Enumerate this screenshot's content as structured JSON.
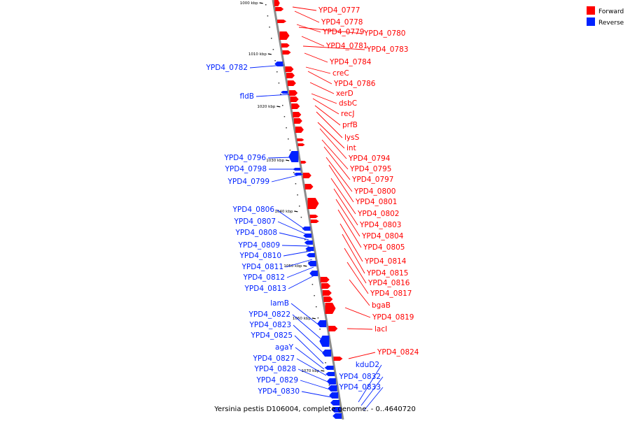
{
  "colors": {
    "forward": "#ff0000",
    "reverse": "#0022ff",
    "backbone": "#8c8c8c",
    "tick": "#000000"
  },
  "legend": {
    "forward": "Forward",
    "reverse": "Reverse"
  },
  "caption": "Yersinia pestis D106004, complete genome. - 0..4640720",
  "ticks": [
    "1000 kbp",
    "1010 kbp",
    "1020 kbp",
    "1030 kbp",
    "1040 kbp",
    "1050 kbp",
    "1060 kbp",
    "1070 kbp"
  ],
  "forward_labels": [
    "YPD4_0777",
    "YPD4_0778",
    "YPD4_0779",
    "YPD4_0780",
    "YPD4_0781",
    "YPD4_0783",
    "YPD4_0784",
    "creC",
    "YPD4_0786",
    "xerD",
    "dsbC",
    "recJ",
    "prfB",
    "lysS",
    "int",
    "YPD4_0794",
    "YPD4_0795",
    "YPD4_0797",
    "YPD4_0800",
    "YPD4_0801",
    "YPD4_0802",
    "YPD4_0803",
    "YPD4_0804",
    "YPD4_0805",
    "YPD4_0814",
    "YPD4_0815",
    "YPD4_0816",
    "YPD4_0817",
    "bgaB",
    "YPD4_0819",
    "lacI",
    "YPD4_0824"
  ],
  "reverse_labels": [
    "YPD4_0782",
    "fldB",
    "YPD4_0796",
    "YPD4_0798",
    "YPD4_0799",
    "YPD4_0806",
    "YPD4_0807",
    "YPD4_0808",
    "YPD4_0809",
    "YPD4_0810",
    "YPD4_0811",
    "YPD4_0812",
    "YPD4_0813",
    "lamB",
    "YPD4_0822",
    "YPD4_0823",
    "YPD4_0825",
    "agaY",
    "YPD4_0827",
    "YPD4_0828",
    "YPD4_0829",
    "YPD4_0830",
    "kduD2",
    "YPD4_0832",
    "YPD4_0833"
  ]
}
